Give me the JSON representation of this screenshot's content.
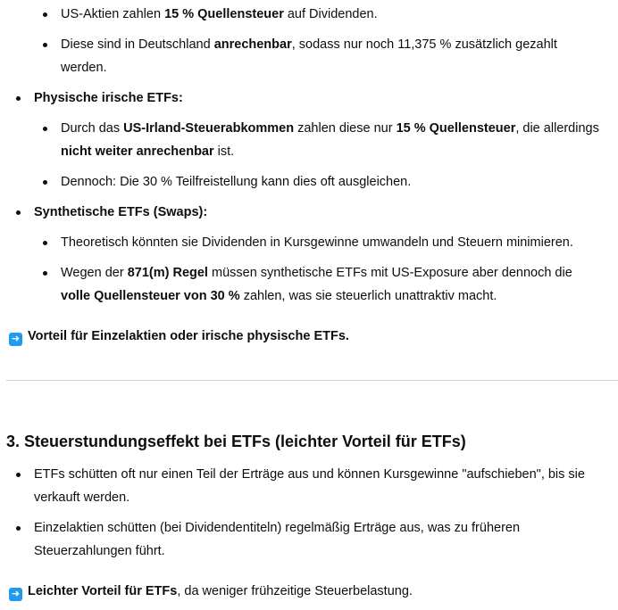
{
  "section2": {
    "items": [
      {
        "level": 2,
        "parts": [
          {
            "t": "US-Aktien zahlen "
          },
          {
            "t": "15 % Quellensteuer",
            "b": true
          },
          {
            "t": " auf Dividenden."
          }
        ]
      },
      {
        "level": 2,
        "parts": [
          {
            "t": "Diese sind in Deutschland "
          },
          {
            "t": "anrechenbar",
            "b": true
          },
          {
            "t": ", sodass nur noch 11,375 % zusätzlich gezahlt werden."
          }
        ]
      },
      {
        "level": 1,
        "parts": [
          {
            "t": "Physische irische ETFs:",
            "b": true
          }
        ]
      },
      {
        "level": 2,
        "parts": [
          {
            "t": "Durch das "
          },
          {
            "t": "US-Irland-Steuerabkommen",
            "b": true
          },
          {
            "t": " zahlen diese nur "
          },
          {
            "t": "15 % Quellensteuer",
            "b": true
          },
          {
            "t": ", die allerdings "
          },
          {
            "t": "nicht weiter anrechenbar",
            "b": true
          },
          {
            "t": " ist."
          }
        ]
      },
      {
        "level": 2,
        "parts": [
          {
            "t": "Dennoch: Die 30 % Teilfreistellung kann dies oft ausgleichen."
          }
        ]
      },
      {
        "level": 1,
        "parts": [
          {
            "t": "Synthetische ETFs (Swaps):",
            "b": true
          }
        ]
      },
      {
        "level": 2,
        "parts": [
          {
            "t": "Theoretisch könnten sie Dividenden in Kursgewinne umwandeln und Steuern minimieren."
          }
        ]
      },
      {
        "level": 2,
        "parts": [
          {
            "t": "Wegen der "
          },
          {
            "t": "871(m) Regel",
            "b": true
          },
          {
            "t": " müssen synthetische ETFs mit US-Exposure aber dennoch die "
          },
          {
            "t": "volle Quellensteuer von 30 %",
            "b": true
          },
          {
            "t": " zahlen, was sie steuerlich unattraktiv macht."
          }
        ]
      }
    ],
    "conclusion": {
      "icon": "right-arrow-emoji",
      "parts": [
        {
          "t": "Vorteil für Einzelaktien oder irische physische ETFs.",
          "b": true
        }
      ]
    }
  },
  "section3": {
    "heading": "3. Steuerstundungseffekt bei ETFs (leichter Vorteil für ETFs)",
    "items": [
      {
        "level": 1,
        "parts": [
          {
            "t": "ETFs schütten oft nur einen Teil der Erträge aus und können Kursgewinne \"aufschieben\", bis sie verkauft werden."
          }
        ]
      },
      {
        "level": 1,
        "parts": [
          {
            "t": "Einzelaktien schütten (bei Dividendentiteln) regelmäßig Erträge aus, was zu früheren Steuerzahlungen führt."
          }
        ]
      }
    ],
    "conclusion": {
      "icon": "right-arrow-emoji",
      "parts": [
        {
          "t": "Leichter Vorteil für ETFs",
          "b": true
        },
        {
          "t": ", da weniger frühzeitige Steuerbelastung."
        }
      ]
    }
  },
  "colors": {
    "text": "#0d0d0d",
    "arrow": "#1e9bf0",
    "divider": "#cfcfcf"
  }
}
